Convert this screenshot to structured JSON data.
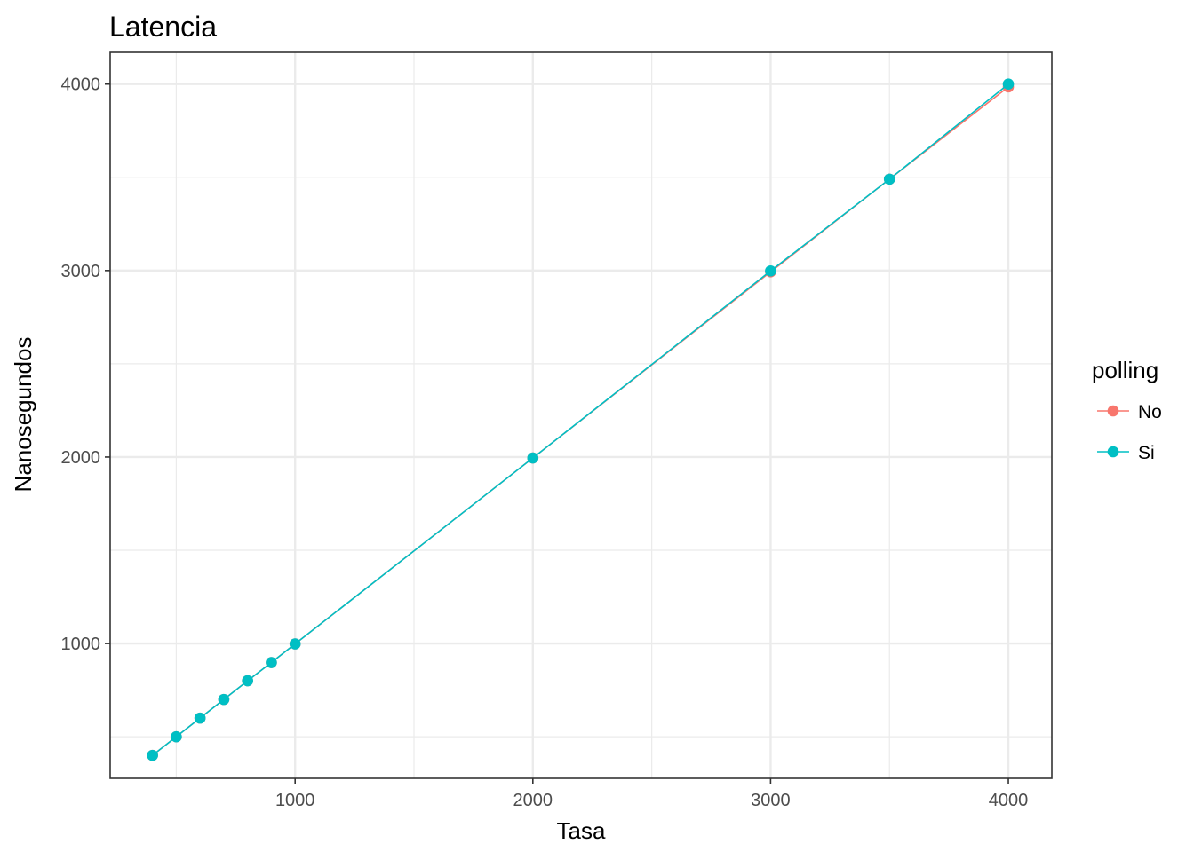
{
  "chart_data": {
    "type": "line",
    "title": "Latencia",
    "xlabel": "Tasa",
    "ylabel": "Nanosegundos",
    "xlim": [
      222,
      4183
    ],
    "ylim": [
      277,
      4170
    ],
    "x_major_ticks": [
      1000,
      2000,
      3000,
      4000
    ],
    "x_minor_ticks": [
      500,
      1500,
      2500,
      3500
    ],
    "y_major_ticks": [
      1000,
      2000,
      3000,
      4000
    ],
    "y_minor_ticks": [
      500,
      1500,
      2500,
      3500
    ],
    "x_tick_labels": [
      "1000",
      "2000",
      "3000",
      "4000"
    ],
    "y_tick_labels": [
      "1000",
      "2000",
      "3000",
      "4000"
    ],
    "grid": true,
    "legend": {
      "title": "polling",
      "position": "right",
      "entries": [
        "No",
        "Si"
      ]
    },
    "series": [
      {
        "name": "No",
        "color": "#F8766D",
        "x": [
          400,
          500,
          600,
          700,
          800,
          900,
          1000,
          2000,
          3000,
          3500,
          4000
        ],
        "y": [
          400,
          500,
          600,
          700,
          800,
          898,
          998,
          1995,
          2993,
          3490,
          3985
        ]
      },
      {
        "name": "Si",
        "color": "#00BFC4",
        "x": [
          400,
          500,
          600,
          700,
          800,
          900,
          1000,
          2000,
          3000,
          3500,
          4000
        ],
        "y": [
          400,
          500,
          600,
          700,
          800,
          898,
          998,
          1995,
          2998,
          3490,
          4000
        ]
      }
    ]
  }
}
